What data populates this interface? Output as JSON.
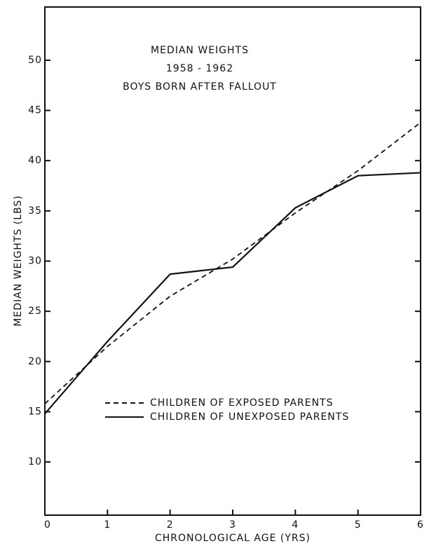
{
  "chart_data": {
    "type": "line",
    "title": [
      "MEDIAN WEIGHTS",
      "1958 - 1962",
      "BOYS BORN AFTER FALLOUT"
    ],
    "x_label": "CHRONOLOGICAL AGE (YRS)",
    "y_label": "MEDIAN WEIGHTS (LBS)",
    "x": [
      0,
      1,
      2,
      3,
      4,
      5,
      6
    ],
    "series": [
      {
        "name": "CHILDREN OF EXPOSED PARENTS",
        "color": "#111111",
        "dash": true,
        "values": [
          15.8,
          21.5,
          26.5,
          30.2,
          34.8,
          39.0,
          43.8
        ]
      },
      {
        "name": "CHILDREN OF UNEXPOSED PARENTS",
        "color": "#111111",
        "dash": false,
        "values": [
          14.8,
          22.0,
          28.7,
          29.4,
          35.3,
          38.5,
          38.8
        ]
      }
    ],
    "xlim": [
      0,
      6
    ],
    "xticks": [
      0,
      1,
      2,
      3,
      4,
      5,
      6
    ],
    "ylim": [
      4.7,
      55.3
    ],
    "yticks": [
      10,
      15,
      20,
      25,
      30,
      35,
      40,
      45,
      50
    ],
    "grid": false
  }
}
